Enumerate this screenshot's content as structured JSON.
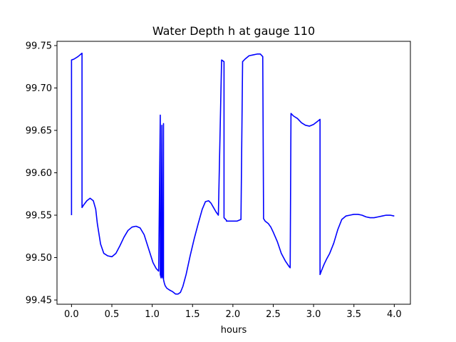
{
  "chart_data": {
    "type": "line",
    "title": "Water Depth h at gauge 110",
    "xlabel": "hours",
    "ylabel": "",
    "xlim": [
      -0.18,
      4.2
    ],
    "ylim": [
      99.445,
      99.755
    ],
    "xticks": [
      0.0,
      0.5,
      1.0,
      1.5,
      2.0,
      2.5,
      3.0,
      3.5,
      4.0
    ],
    "xtick_labels": [
      "0.0",
      "0.5",
      "1.0",
      "1.5",
      "2.0",
      "2.5",
      "3.0",
      "3.5",
      "4.0"
    ],
    "yticks": [
      99.45,
      99.5,
      99.55,
      99.6,
      99.65,
      99.7,
      99.75
    ],
    "ytick_labels": [
      "99.45",
      "99.50",
      "99.55",
      "99.60",
      "99.65",
      "99.70",
      "99.75"
    ],
    "grid": false,
    "legend": "none",
    "series": [
      {
        "color": "#0000ff",
        "x": [
          0.0,
          0.0,
          0.03,
          0.08,
          0.13,
          0.13,
          0.15,
          0.19,
          0.23,
          0.27,
          0.3,
          0.32,
          0.36,
          0.4,
          0.45,
          0.5,
          0.55,
          0.6,
          0.65,
          0.7,
          0.75,
          0.8,
          0.85,
          0.9,
          0.93,
          0.97,
          1.01,
          1.05,
          1.08,
          1.1,
          1.1,
          1.11,
          1.12,
          1.12,
          1.13,
          1.14,
          1.14,
          1.15,
          1.16,
          1.18,
          1.21,
          1.25,
          1.29,
          1.32,
          1.35,
          1.38,
          1.42,
          1.47,
          1.52,
          1.57,
          1.62,
          1.66,
          1.7,
          1.73,
          1.76,
          1.79,
          1.82,
          1.86,
          1.89,
          1.89,
          1.92,
          1.92,
          1.95,
          2.0,
          2.05,
          2.1,
          2.12,
          2.12,
          2.15,
          2.2,
          2.25,
          2.3,
          2.34,
          2.37,
          2.38,
          2.38,
          2.4,
          2.44,
          2.47,
          2.5,
          2.55,
          2.6,
          2.65,
          2.7,
          2.71,
          2.72,
          2.75,
          2.8,
          2.85,
          2.9,
          2.95,
          3.0,
          3.04,
          3.08,
          3.08,
          3.1,
          3.13,
          3.16,
          3.2,
          3.25,
          3.3,
          3.35,
          3.4,
          3.45,
          3.5,
          3.55,
          3.6,
          3.65,
          3.7,
          3.75,
          3.8,
          3.85,
          3.9,
          3.95,
          4.0
        ],
        "y": [
          99.55,
          99.733,
          99.734,
          99.737,
          99.741,
          99.559,
          99.562,
          99.567,
          99.57,
          99.567,
          99.557,
          99.54,
          99.516,
          99.505,
          99.502,
          99.501,
          99.505,
          99.514,
          99.524,
          99.532,
          99.536,
          99.537,
          99.535,
          99.527,
          99.518,
          99.506,
          99.494,
          99.487,
          99.484,
          99.668,
          99.48,
          99.476,
          99.656,
          99.479,
          99.476,
          99.658,
          99.474,
          99.47,
          99.467,
          99.464,
          99.462,
          99.46,
          99.457,
          99.457,
          99.459,
          99.466,
          99.48,
          99.502,
          99.522,
          99.54,
          99.557,
          99.566,
          99.567,
          99.564,
          99.559,
          99.554,
          99.55,
          99.733,
          99.731,
          99.547,
          99.544,
          99.543,
          99.543,
          99.543,
          99.543,
          99.545,
          99.728,
          99.731,
          99.734,
          99.738,
          99.739,
          99.74,
          99.74,
          99.737,
          99.55,
          99.546,
          99.543,
          99.54,
          99.536,
          99.53,
          99.519,
          99.505,
          99.496,
          99.489,
          99.488,
          99.67,
          99.667,
          99.664,
          99.659,
          99.656,
          99.655,
          99.657,
          99.66,
          99.663,
          99.48,
          99.485,
          99.492,
          99.498,
          99.505,
          99.517,
          99.533,
          99.545,
          99.549,
          99.55,
          99.551,
          99.551,
          99.55,
          99.548,
          99.547,
          99.547,
          99.548,
          99.549,
          99.55,
          99.55,
          99.549
        ]
      }
    ]
  }
}
